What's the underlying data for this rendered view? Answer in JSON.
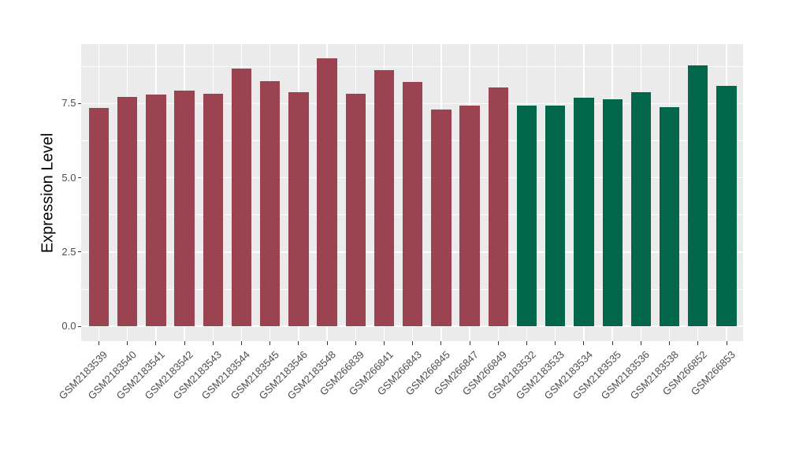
{
  "figure": {
    "background": "#ffffff"
  },
  "chart_data": {
    "type": "bar",
    "title": "",
    "xlabel": "",
    "ylabel": "Expression Level",
    "ylim": [
      -0.5,
      9.5
    ],
    "yticks": [
      0,
      2.5,
      5,
      7.5
    ],
    "ytick_labels": [
      "0.0",
      "2.5",
      "5.0",
      "7.5"
    ],
    "minor_yticks": [
      1.25,
      3.75,
      6.25,
      8.75
    ],
    "grid": "on",
    "legend_position": "none",
    "panel_background": "#EBEBEB",
    "grid_color": "#FFFFFF",
    "axis_text_color": "#4d4d4d",
    "tick_mark_color": "#333333",
    "bar_width_fraction": 0.7,
    "categories": [
      "GSM2183539",
      "GSM2183540",
      "GSM2183541",
      "GSM2183542",
      "GSM2183543",
      "GSM2183544",
      "GSM2183545",
      "GSM2183546",
      "GSM2183548",
      "GSM266839",
      "GSM266841",
      "GSM266843",
      "GSM266845",
      "GSM266847",
      "GSM266849",
      "GSM2183532",
      "GSM2183533",
      "GSM2183534",
      "GSM2183535",
      "GSM2183536",
      "GSM2183538",
      "GSM266852",
      "GSM266853"
    ],
    "values": [
      7.36,
      7.71,
      7.79,
      7.93,
      7.84,
      8.67,
      8.25,
      7.89,
      9.03,
      7.83,
      8.62,
      8.22,
      7.29,
      7.43,
      8.05,
      7.44,
      7.42,
      7.7,
      7.65,
      7.88,
      7.39,
      8.78,
      8.09
    ],
    "series": [
      {
        "name": "group-red",
        "color": "#9B4351",
        "category_count": 15
      },
      {
        "name": "group-green",
        "color": "#02664B",
        "category_count": 8
      }
    ],
    "bar_group_index": [
      0,
      0,
      0,
      0,
      0,
      0,
      0,
      0,
      0,
      0,
      0,
      0,
      0,
      0,
      0,
      1,
      1,
      1,
      1,
      1,
      1,
      1,
      1
    ]
  }
}
